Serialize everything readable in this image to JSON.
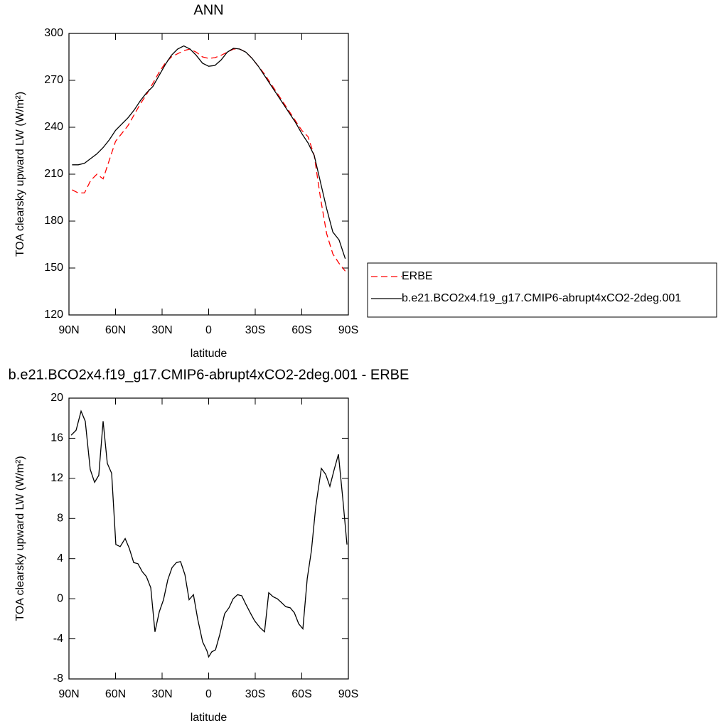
{
  "chart_data": [
    {
      "type": "line",
      "title": "ANN",
      "x_label": "latitude",
      "y_label": "TOA clearsky upward LW (W/m²)",
      "x": [
        88,
        84,
        80,
        76,
        72,
        68,
        64,
        60,
        56,
        52,
        48,
        44,
        40,
        36,
        32,
        28,
        24,
        20,
        16,
        12,
        8,
        4,
        0,
        -4,
        -8,
        -12,
        -16,
        -20,
        -24,
        -28,
        -32,
        -36,
        -40,
        -44,
        -48,
        -52,
        -56,
        -60,
        -64,
        -68,
        -72,
        -76,
        -80,
        -84,
        -88
      ],
      "series": [
        {
          "name": "ERBE",
          "color": "#ff0000",
          "dashed": true,
          "values": [
            200,
            198,
            198,
            206,
            210,
            207,
            219,
            231,
            236,
            241,
            248,
            255,
            261,
            268,
            275,
            281,
            285,
            287,
            289,
            290,
            288,
            285,
            284,
            284.5,
            286,
            288,
            290,
            290,
            288,
            284,
            279,
            274,
            268,
            262,
            256,
            250,
            244,
            238,
            234,
            222,
            195,
            172,
            159,
            153,
            148
          ]
        },
        {
          "name": "b.e21.BCO2x4.f19_g17.CMIP6-abrupt4xCO2-2deg.001",
          "color": "#000000",
          "dashed": false,
          "values": [
            216,
            216,
            217,
            220,
            223,
            227,
            232,
            238,
            242,
            246,
            251,
            257,
            262,
            266,
            273,
            280,
            286,
            290,
            292,
            290,
            286,
            281,
            279,
            279.5,
            283,
            288,
            290.5,
            290,
            288,
            284,
            279,
            273,
            267,
            261,
            255,
            249,
            243,
            236,
            230,
            222,
            205,
            188,
            173,
            168,
            156
          ]
        }
      ],
      "xlim": [
        90,
        -90
      ],
      "xticks": [
        {
          "value": 90,
          "label": "90N"
        },
        {
          "value": 60,
          "label": "60N"
        },
        {
          "value": 30,
          "label": "30N"
        },
        0,
        {
          "value": -30,
          "label": "30S"
        },
        {
          "value": -60,
          "label": "60S"
        },
        {
          "value": -90,
          "label": "90S"
        }
      ],
      "ylim": [
        120,
        300
      ],
      "yticks": [
        120,
        150,
        180,
        210,
        240,
        270,
        300
      ],
      "legend": "right"
    },
    {
      "type": "line",
      "title": "b.e21.BCO2x4.f19_g17.CMIP6-abrupt4xCO2-2deg.001 - ERBE",
      "x_label": "latitude",
      "y_label": "TOA clearsky upward LW (W/m²)",
      "x": [
        88.6,
        85.4,
        82.2,
        79.5,
        76.3,
        73.5,
        70.8,
        68,
        65.3,
        62.5,
        59.8,
        57,
        53.8,
        51.1,
        48.3,
        45.6,
        42.8,
        40.1,
        37.3,
        34.6,
        31.8,
        29.1,
        26.3,
        23.6,
        20.8,
        18.1,
        15.3,
        12.6,
        9.8,
        7.1,
        3.9,
        1.1,
        0,
        -2,
        -4.4,
        -7.1,
        -10.3,
        -13.1,
        -15.8,
        -18.6,
        -21.3,
        -24.1,
        -26.8,
        -29.6,
        -33.2,
        -36,
        -38.7,
        -41.5,
        -44.2,
        -47,
        -49.7,
        -52.5,
        -55.2,
        -58,
        -60.7,
        -63.5,
        -66.2,
        -69,
        -72.6,
        -75.4,
        -78.1,
        -80.9,
        -83.6,
        -86.4,
        -89.1
      ],
      "values": [
        16.3,
        16.8,
        18.7,
        17.7,
        12.9,
        11.6,
        12.3,
        17.7,
        13.5,
        12.5,
        5.4,
        5.2,
        6.0,
        5.0,
        3.6,
        3.5,
        2.7,
        2.2,
        1.1,
        -3.3,
        -1.3,
        -0.1,
        1.9,
        3.1,
        3.6,
        3.7,
        2.4,
        -0.1,
        0.4,
        -2.0,
        -4.3,
        -5.2,
        -5.8,
        -5.3,
        -5.1,
        -3.6,
        -1.5,
        -0.9,
        0.0,
        0.4,
        0.3,
        -0.6,
        -1.4,
        -2.2,
        -2.9,
        -3.3,
        0.6,
        0.2,
        0.0,
        -0.4,
        -0.8,
        -0.9,
        -1.4,
        -2.5,
        -3.0,
        2.0,
        4.8,
        9.2,
        13.0,
        12.4,
        11.2,
        12.9,
        14.4,
        10.0,
        5.4
      ],
      "color": "#000000",
      "xlim": [
        90,
        -90
      ],
      "xticks": [
        {
          "value": 90,
          "label": "90N"
        },
        {
          "value": 60,
          "label": "60N"
        },
        {
          "value": 30,
          "label": "30N"
        },
        0,
        {
          "value": -30,
          "label": "30S"
        },
        {
          "value": -60,
          "label": "60S"
        },
        {
          "value": -90,
          "label": "90S"
        }
      ],
      "ylim": [
        -8,
        20
      ],
      "yticks": [
        -8,
        -4,
        0,
        4,
        8,
        12,
        16,
        20
      ]
    }
  ]
}
